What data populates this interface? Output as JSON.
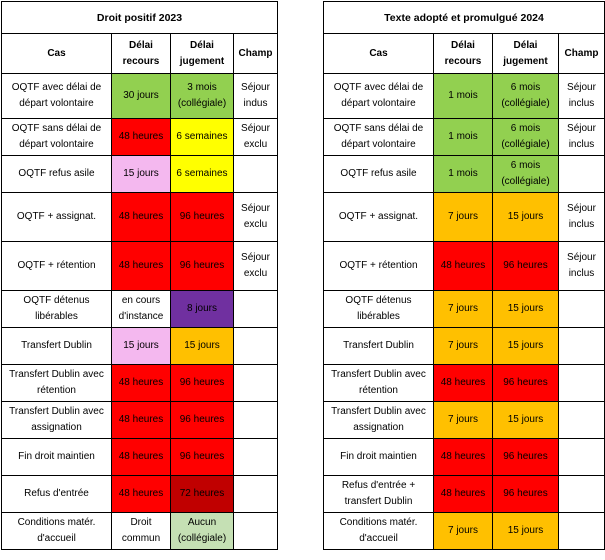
{
  "colors": {
    "white": "#ffffff",
    "green": "#92d050",
    "red": "#ff0000",
    "yellow": "#ffff00",
    "pink": "#f4b8ef",
    "purple": "#7030a0",
    "orange": "#ffc000",
    "darkred": "#c00000",
    "lightgreen": "#c5e0b4"
  },
  "tables": [
    {
      "title": "Droit positif 2023",
      "headers": {
        "cas": "Cas",
        "delai_recours": "Délai recours",
        "delai_jugement": "Délai jugement",
        "champ": "Champ"
      },
      "rows": [
        {
          "cas": "OQTF avec délai de départ volontaire",
          "recours": "30 jours",
          "recours_color": "green",
          "jugement": "3 mois (collégiale)",
          "jugement_color": "green",
          "champ": "Séjour indus"
        },
        {
          "cas": "OQTF sans délai de départ volontaire",
          "recours": "48 heures",
          "recours_color": "red",
          "jugement": "6 semaines",
          "jugement_color": "yellow",
          "champ": "Séjour exclu"
        },
        {
          "cas": "OQTF refus asile",
          "recours": "15 jours",
          "recours_color": "pink",
          "jugement": "6 semaines",
          "jugement_color": "yellow",
          "champ": ""
        },
        {
          "cas": "OQTF + assignat.",
          "recours": "48 heures",
          "recours_color": "red",
          "jugement": "96 heures",
          "jugement_color": "red",
          "champ": "Séjour exclu"
        },
        {
          "cas": "OQTF + rétention",
          "recours": "48 heures",
          "recours_color": "red",
          "jugement": "96 heures",
          "jugement_color": "red",
          "champ": "Séjour exclu"
        },
        {
          "cas": "OQTF détenus libérables",
          "recours": "en cours d'instance",
          "recours_color": "white",
          "jugement": "8 jours",
          "jugement_color": "purple",
          "champ": ""
        },
        {
          "cas": "Transfert Dublin",
          "recours": "15 jours",
          "recours_color": "pink",
          "jugement": "15 jours",
          "jugement_color": "orange",
          "champ": ""
        },
        {
          "cas": "Transfert Dublin avec rétention",
          "recours": "48 heures",
          "recours_color": "red",
          "jugement": "96 heures",
          "jugement_color": "red",
          "champ": ""
        },
        {
          "cas": "Transfert Dublin avec assignation",
          "recours": "48 heures",
          "recours_color": "red",
          "jugement": "96 heures",
          "jugement_color": "red",
          "champ": ""
        },
        {
          "cas": "Fin droit maintien",
          "recours": "48 heures",
          "recours_color": "red",
          "jugement": "96 heures",
          "jugement_color": "red",
          "champ": ""
        },
        {
          "cas": "Refus d'entrée",
          "recours": "48 heures",
          "recours_color": "red",
          "jugement": "72 heures",
          "jugement_color": "darkred",
          "champ": ""
        },
        {
          "cas": "Conditions matér. d'accueil",
          "recours": "Droit commun",
          "recours_color": "white",
          "jugement": "Aucun (collégiale)",
          "jugement_color": "lightgreen",
          "champ": ""
        }
      ]
    },
    {
      "title": "Texte adopté et promulgué 2024",
      "headers": {
        "cas": "Cas",
        "delai_recours": "Délai recours",
        "delai_jugement": "Délai jugement",
        "champ": "Champ"
      },
      "rows": [
        {
          "cas": "OQTF avec délai de départ volontaire",
          "recours": "1 mois",
          "recours_color": "green",
          "jugement": "6 mois (collégiale)",
          "jugement_color": "green",
          "champ": "Séjour inclus"
        },
        {
          "cas": "OQTF sans délai de départ volontaire",
          "recours": "1 mois",
          "recours_color": "green",
          "jugement": "6 mois (collégiale)",
          "jugement_color": "green",
          "champ": "Séjour inclus"
        },
        {
          "cas": "OQTF refus asile",
          "recours": "1 mois",
          "recours_color": "green",
          "jugement": "6 mois (collégiale)",
          "jugement_color": "green",
          "champ": ""
        },
        {
          "cas": "OQTF + assignat.",
          "recours": "7 jours",
          "recours_color": "orange",
          "jugement": "15 jours",
          "jugement_color": "orange",
          "champ": "Séjour inclus"
        },
        {
          "cas": "OQTF + rétention",
          "recours": "48 heures",
          "recours_color": "red",
          "jugement": "96 heures",
          "jugement_color": "red",
          "champ": "Séjour inclus"
        },
        {
          "cas": "OQTF détenus libérables",
          "recours": "7 jours",
          "recours_color": "orange",
          "jugement": "15 jours",
          "jugement_color": "orange",
          "champ": ""
        },
        {
          "cas": "Transfert Dublin",
          "recours": "7 jours",
          "recours_color": "orange",
          "jugement": "15 jours",
          "jugement_color": "orange",
          "champ": ""
        },
        {
          "cas": "Transfert Dublin avec rétention",
          "recours": "48 heures",
          "recours_color": "red",
          "jugement": "96 heures",
          "jugement_color": "red",
          "champ": ""
        },
        {
          "cas": "Transfert Dublin avec assignation",
          "recours": "7 jours",
          "recours_color": "orange",
          "jugement": "15 jours",
          "jugement_color": "orange",
          "champ": ""
        },
        {
          "cas": "Fin droit maintien",
          "recours": "48 heures",
          "recours_color": "red",
          "jugement": "96 heures",
          "jugement_color": "red",
          "champ": ""
        },
        {
          "cas": "Refus d'entrée + transfert Dublin",
          "recours": "48 heures",
          "recours_color": "red",
          "jugement": "96 heures",
          "jugement_color": "red",
          "champ": ""
        },
        {
          "cas": "Conditions matér. d'accueil",
          "recours": "7 jours",
          "recours_color": "orange",
          "jugement": "15 jours",
          "jugement_color": "orange",
          "champ": ""
        }
      ]
    }
  ]
}
